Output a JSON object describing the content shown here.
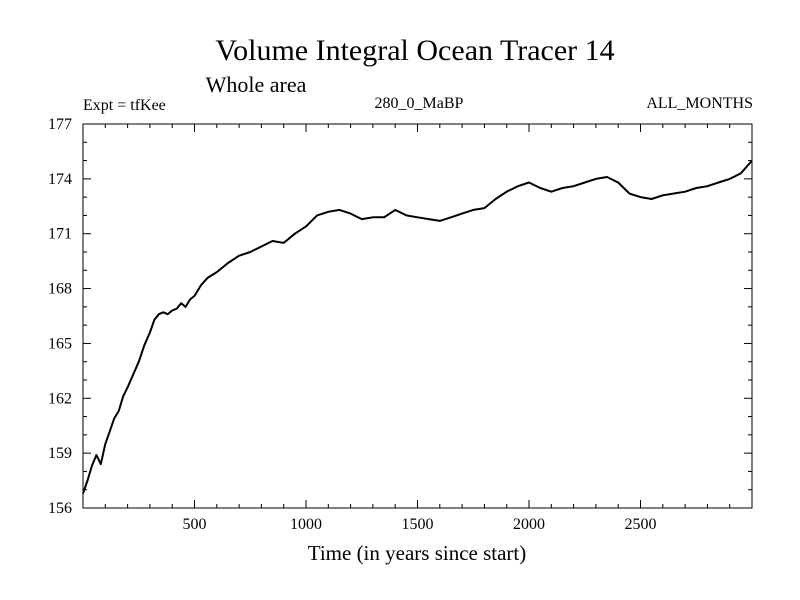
{
  "chart_data": {
    "type": "line",
    "title": "Volume Integral Ocean Tracer 14",
    "subtitle": "Whole area",
    "annotations": {
      "left": "Expt = tfKee",
      "center": "280_0_MaBP",
      "right": "ALL_MONTHS"
    },
    "xlabel": "Time (in years since start)",
    "ylabel": "",
    "xlim": [
      0,
      3000
    ],
    "ylim": [
      156,
      177
    ],
    "xticks": [
      500,
      1000,
      1500,
      2000,
      2500
    ],
    "xtick_labels": [
      "500",
      "1000",
      "1500",
      "2000",
      "2500"
    ],
    "yticks": [
      156,
      159,
      162,
      165,
      168,
      171,
      174,
      177
    ],
    "ytick_labels": [
      "156",
      "159",
      "162",
      "165",
      "168",
      "171",
      "174",
      "177"
    ],
    "x_minor_step": 100,
    "y_minor_step": 1,
    "grid": false,
    "colors": {
      "line": "#000000",
      "axes": "#000000",
      "background": "#ffffff"
    },
    "series": [
      {
        "x": [
          0,
          20,
          40,
          60,
          80,
          100,
          120,
          140,
          160,
          180,
          200,
          225,
          250,
          275,
          300,
          320,
          340,
          360,
          380,
          400,
          420,
          440,
          460,
          480,
          500,
          530,
          560,
          600,
          650,
          700,
          750,
          800,
          850,
          900,
          950,
          1000,
          1050,
          1100,
          1150,
          1200,
          1250,
          1300,
          1350,
          1400,
          1450,
          1500,
          1550,
          1600,
          1650,
          1700,
          1750,
          1800,
          1850,
          1900,
          1950,
          2000,
          2050,
          2100,
          2150,
          2200,
          2250,
          2300,
          2350,
          2400,
          2450,
          2500,
          2550,
          2600,
          2650,
          2700,
          2750,
          2800,
          2850,
          2900,
          2950,
          3000
        ],
        "values": [
          156.8,
          157.5,
          158.3,
          158.9,
          158.4,
          159.5,
          160.2,
          160.9,
          161.3,
          162.1,
          162.6,
          163.3,
          164.0,
          164.9,
          165.6,
          166.3,
          166.6,
          166.7,
          166.6,
          166.8,
          166.9,
          167.2,
          167.0,
          167.4,
          167.6,
          168.2,
          168.6,
          168.9,
          169.4,
          169.8,
          170.0,
          170.3,
          170.6,
          170.5,
          171.0,
          171.4,
          172.0,
          172.2,
          172.3,
          172.1,
          171.8,
          171.9,
          171.9,
          172.3,
          172.0,
          171.9,
          171.8,
          171.7,
          171.9,
          172.1,
          172.3,
          172.4,
          172.9,
          173.3,
          173.6,
          173.8,
          173.5,
          173.3,
          173.5,
          173.6,
          173.8,
          174.0,
          174.1,
          173.8,
          173.2,
          173.0,
          172.9,
          173.1,
          173.2,
          173.3,
          173.5,
          173.6,
          173.8,
          174.0,
          174.3,
          175.0
        ]
      }
    ]
  }
}
